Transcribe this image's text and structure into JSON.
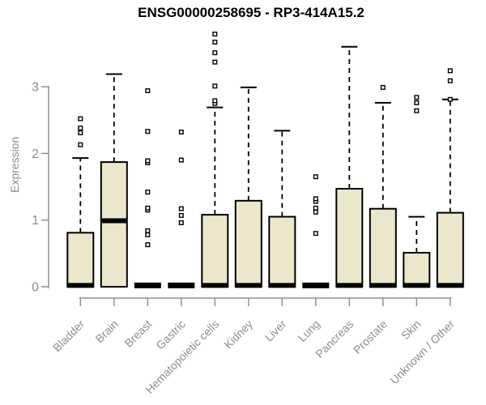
{
  "chart_data": {
    "type": "boxplot",
    "title": "ENSG00000258695 - RP3-414A15.2",
    "ylabel": "Expression",
    "xlabel": "",
    "yticks": [
      0,
      1,
      2,
      3
    ],
    "ylim": [
      0,
      3.9
    ],
    "grid": false,
    "legend": null,
    "colors": {
      "box_fill": "#ECE7CA",
      "box_stroke": "#000000",
      "axis": "#8e8e8e",
      "axis_line": "#919191",
      "title": "#000000",
      "outlier_fill": "#ffffff"
    },
    "categories": [
      "Bladder",
      "Brain",
      "Breast",
      "Gastric",
      "Hematopoietic cells",
      "Kidney",
      "Liver",
      "Lung",
      "Pancreas",
      "Prostate",
      "Skin",
      "Unknown / Other"
    ],
    "series": [
      {
        "category": "Bladder",
        "q1": 0,
        "median": 0.02,
        "q3": 0.81,
        "whisker_low": 0,
        "whisker_high": 1.93,
        "outliers": [
          2.13,
          2.31,
          2.38,
          2.52
        ]
      },
      {
        "category": "Brain",
        "q1": 0,
        "median": 0.99,
        "q3": 1.87,
        "whisker_low": 0,
        "whisker_high": 3.19,
        "outliers": []
      },
      {
        "category": "Breast",
        "q1": 0,
        "median": 0.02,
        "q3": 0.02,
        "whisker_low": 0,
        "whisker_high": 0.02,
        "outliers": [
          0.63,
          0.78,
          0.84,
          1.15,
          1.18,
          1.42,
          1.86,
          1.89,
          2.33,
          2.94
        ]
      },
      {
        "category": "Gastric",
        "q1": 0,
        "median": 0.02,
        "q3": 0.02,
        "whisker_low": 0,
        "whisker_high": 0.02,
        "outliers": [
          0.96,
          1.07,
          1.17,
          1.9,
          2.32
        ]
      },
      {
        "category": "Hematopoietic cells",
        "q1": 0,
        "median": 0.02,
        "q3": 1.08,
        "whisker_low": 0,
        "whisker_high": 2.69,
        "outliers": [
          2.75,
          2.79,
          3.01,
          3.37,
          3.51,
          3.67,
          3.79
        ]
      },
      {
        "category": "Kidney",
        "q1": 0,
        "median": 0.02,
        "q3": 1.29,
        "whisker_low": 0,
        "whisker_high": 2.99,
        "outliers": []
      },
      {
        "category": "Liver",
        "q1": 0,
        "median": 0.02,
        "q3": 1.05,
        "whisker_low": 0,
        "whisker_high": 2.34,
        "outliers": []
      },
      {
        "category": "Lung",
        "q1": 0,
        "median": 0.02,
        "q3": 0.02,
        "whisker_low": 0,
        "whisker_high": 0.02,
        "outliers": [
          0.8,
          1.12,
          1.18,
          1.28,
          1.32,
          1.65
        ]
      },
      {
        "category": "Pancreas",
        "q1": 0,
        "median": 0.02,
        "q3": 1.47,
        "whisker_low": 0,
        "whisker_high": 3.6,
        "outliers": []
      },
      {
        "category": "Prostate",
        "q1": 0,
        "median": 0.02,
        "q3": 1.17,
        "whisker_low": 0,
        "whisker_high": 2.76,
        "outliers": [
          2.99
        ]
      },
      {
        "category": "Skin",
        "q1": 0,
        "median": 0.02,
        "q3": 0.51,
        "whisker_low": 0,
        "whisker_high": 1.05,
        "outliers": [
          2.64,
          2.76,
          2.84
        ]
      },
      {
        "category": "Unknown / Other",
        "q1": 0,
        "median": 0.02,
        "q3": 1.11,
        "whisker_low": 0,
        "whisker_high": 2.81,
        "outliers": [
          2.81,
          3.09,
          3.24
        ]
      }
    ]
  }
}
